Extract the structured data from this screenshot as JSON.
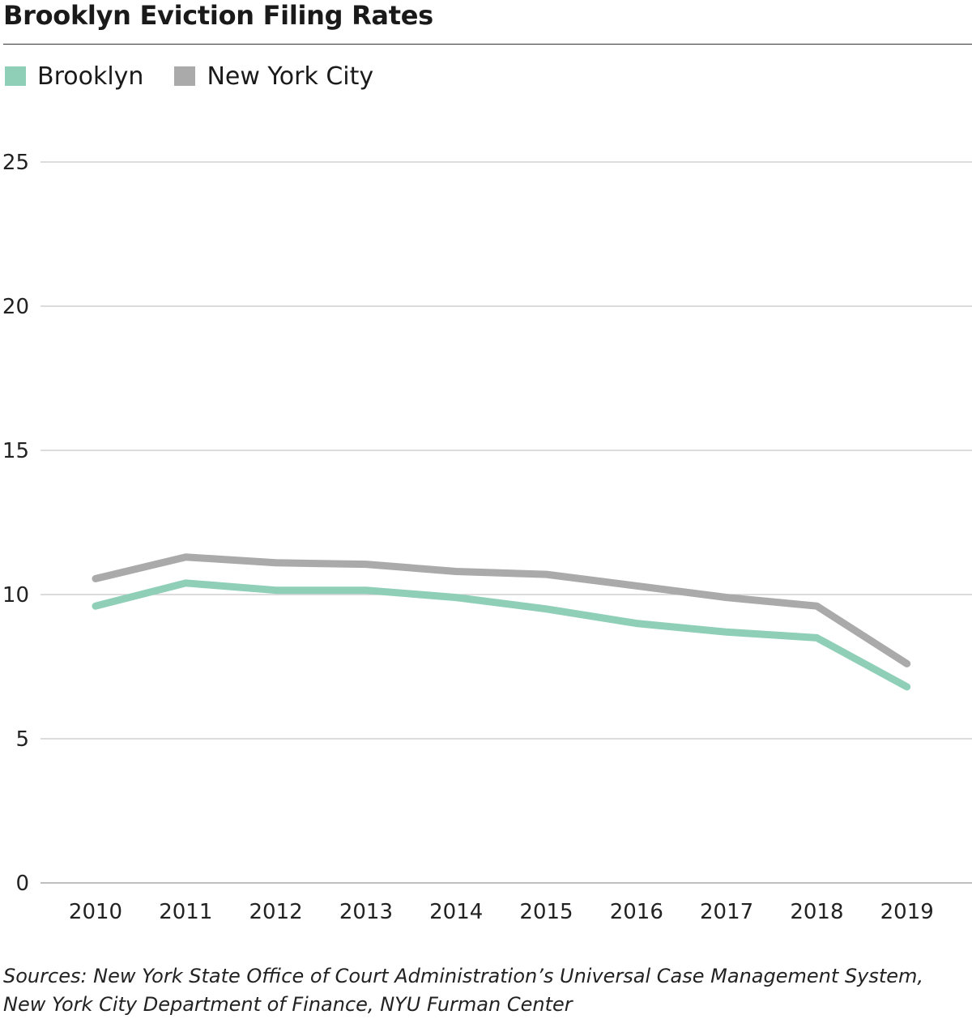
{
  "chart_data": {
    "type": "line",
    "title": "Brooklyn Eviction Filing Rates",
    "x": [
      "2010",
      "2011",
      "2012",
      "2013",
      "2014",
      "2015",
      "2016",
      "2017",
      "2018",
      "2019"
    ],
    "series": [
      {
        "name": "Brooklyn",
        "color": "#8fcfb8",
        "values": [
          9.6,
          10.4,
          10.15,
          10.15,
          9.9,
          9.5,
          9.0,
          8.7,
          8.5,
          6.8
        ]
      },
      {
        "name": "New York City",
        "color": "#aaaaaa",
        "values": [
          10.55,
          11.3,
          11.1,
          11.05,
          10.8,
          10.7,
          10.3,
          9.9,
          9.6,
          7.6
        ]
      }
    ],
    "yticks": [
      "0",
      "5",
      "10",
      "15",
      "20",
      "25"
    ],
    "ylim": [
      0,
      25
    ],
    "grid": "horizontal",
    "legend_position": "top-left",
    "xlabel": "",
    "ylabel": ""
  },
  "sources": [
    "Sources: New York State Office of Court Administration’s Universal Case Management System,",
    "New York City Department of Finance, NYU Furman Center"
  ]
}
